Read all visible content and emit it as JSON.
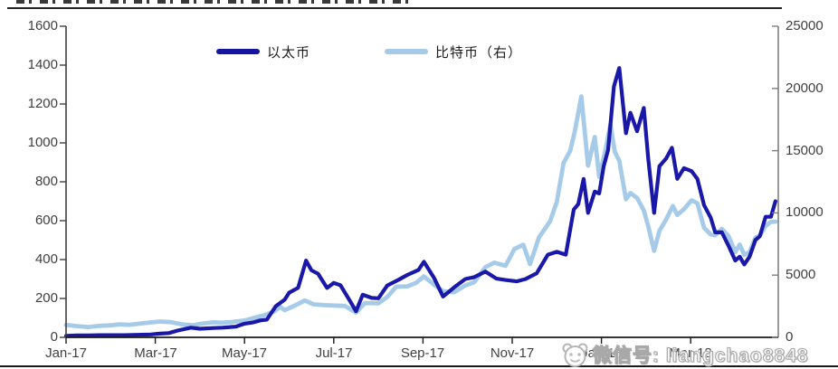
{
  "legend": {
    "items": [
      {
        "label": "以太币",
        "color": "#14149e"
      },
      {
        "label": "比特币（右）",
        "color": "#a6cbe9"
      }
    ]
  },
  "watermark": {
    "label": "微信号: liangchao8848",
    "icon": "panda-face-icon"
  },
  "chart_data": {
    "type": "line",
    "x_tick_labels": [
      "Jan-17",
      "Mar-17",
      "May-17",
      "Jul-17",
      "Sep-17",
      "Nov-17",
      "Jan-18",
      "Mar-18"
    ],
    "x_tick_months": [
      0,
      2,
      4,
      6,
      8,
      10,
      12,
      14
    ],
    "x_range_months": [
      0,
      15.9
    ],
    "left_axis": {
      "min": 0,
      "max": 1600,
      "step": 200,
      "ticks": [
        0,
        200,
        400,
        600,
        800,
        1000,
        1200,
        1400,
        1600
      ]
    },
    "right_axis": {
      "min": 0,
      "max": 25000,
      "step": 5000,
      "ticks": [
        0,
        5000,
        10000,
        15000,
        20000,
        25000
      ]
    },
    "grid": false,
    "legend_position": "top",
    "colors": {
      "axis_text": "#3f3f3f",
      "axis_line": "#404040",
      "right_axis_line": "#7f7f7f",
      "bottom_axis_line": "#1a1a1a"
    },
    "series": [
      {
        "name": "比特币（右）",
        "axis": "right",
        "color": "#a6cbe9",
        "points": [
          [
            0,
            997
          ],
          [
            0.25,
            900
          ],
          [
            0.5,
            830
          ],
          [
            0.75,
            920
          ],
          [
            1,
            970
          ],
          [
            1.2,
            1050
          ],
          [
            1.4,
            1000
          ],
          [
            1.6,
            1080
          ],
          [
            1.85,
            1180
          ],
          [
            2.1,
            1270
          ],
          [
            2.35,
            1220
          ],
          [
            2.6,
            1040
          ],
          [
            2.85,
            970
          ],
          [
            3,
            1080
          ],
          [
            3.3,
            1210
          ],
          [
            3.5,
            1180
          ],
          [
            3.7,
            1230
          ],
          [
            4,
            1350
          ],
          [
            4.2,
            1550
          ],
          [
            4.45,
            1790
          ],
          [
            4.65,
            2050
          ],
          [
            4.8,
            2450
          ],
          [
            4.9,
            2190
          ],
          [
            5.1,
            2510
          ],
          [
            5.35,
            2960
          ],
          [
            5.55,
            2650
          ],
          [
            5.8,
            2590
          ],
          [
            6,
            2560
          ],
          [
            6.25,
            2520
          ],
          [
            6.5,
            1990
          ],
          [
            6.7,
            2760
          ],
          [
            7,
            2730
          ],
          [
            7.2,
            3250
          ],
          [
            7.4,
            4070
          ],
          [
            7.65,
            4100
          ],
          [
            7.85,
            4390
          ],
          [
            8.02,
            4900
          ],
          [
            8.25,
            4230
          ],
          [
            8.45,
            3710
          ],
          [
            8.7,
            3630
          ],
          [
            8.95,
            4170
          ],
          [
            9.15,
            4430
          ],
          [
            9.4,
            5640
          ],
          [
            9.6,
            6000
          ],
          [
            9.85,
            5750
          ],
          [
            10.05,
            7100
          ],
          [
            10.25,
            7440
          ],
          [
            10.4,
            5880
          ],
          [
            10.6,
            8040
          ],
          [
            10.85,
            9330
          ],
          [
            11,
            10900
          ],
          [
            11.15,
            14000
          ],
          [
            11.3,
            15000
          ],
          [
            11.4,
            16500
          ],
          [
            11.55,
            19350
          ],
          [
            11.7,
            13800
          ],
          [
            11.85,
            16100
          ],
          [
            11.95,
            12900
          ],
          [
            12.1,
            15200
          ],
          [
            12.2,
            17100
          ],
          [
            12.3,
            14900
          ],
          [
            12.4,
            14200
          ],
          [
            12.55,
            11100
          ],
          [
            12.65,
            11600
          ],
          [
            12.8,
            11200
          ],
          [
            12.95,
            10200
          ],
          [
            13.05,
            8900
          ],
          [
            13.18,
            6950
          ],
          [
            13.3,
            8560
          ],
          [
            13.45,
            9480
          ],
          [
            13.6,
            10550
          ],
          [
            13.7,
            9840
          ],
          [
            13.85,
            10300
          ],
          [
            14.02,
            11020
          ],
          [
            14.15,
            10780
          ],
          [
            14.3,
            8800
          ],
          [
            14.45,
            8270
          ],
          [
            14.55,
            8200
          ],
          [
            14.7,
            8720
          ],
          [
            14.85,
            8140
          ],
          [
            15,
            6850
          ],
          [
            15.1,
            7460
          ],
          [
            15.2,
            6630
          ],
          [
            15.32,
            6840
          ],
          [
            15.45,
            8000
          ],
          [
            15.55,
            8170
          ],
          [
            15.68,
            8950
          ],
          [
            15.8,
            9280
          ],
          [
            15.9,
            9300
          ]
        ]
      },
      {
        "name": "以太币",
        "axis": "left",
        "color": "#1a18a8",
        "points": [
          [
            0,
            8
          ],
          [
            0.25,
            10
          ],
          [
            0.5,
            10
          ],
          [
            0.75,
            11
          ],
          [
            1,
            11
          ],
          [
            1.3,
            11
          ],
          [
            1.6,
            13
          ],
          [
            1.9,
            15
          ],
          [
            2.1,
            19
          ],
          [
            2.3,
            22
          ],
          [
            2.5,
            35
          ],
          [
            2.8,
            50
          ],
          [
            3,
            44
          ],
          [
            3.3,
            48
          ],
          [
            3.5,
            50
          ],
          [
            3.8,
            55
          ],
          [
            4,
            70
          ],
          [
            4.2,
            77
          ],
          [
            4.35,
            87
          ],
          [
            4.5,
            91
          ],
          [
            4.7,
            160
          ],
          [
            4.9,
            194
          ],
          [
            5,
            230
          ],
          [
            5.2,
            255
          ],
          [
            5.38,
            395
          ],
          [
            5.5,
            345
          ],
          [
            5.65,
            327
          ],
          [
            5.85,
            254
          ],
          [
            6,
            280
          ],
          [
            6.15,
            268
          ],
          [
            6.35,
            192
          ],
          [
            6.5,
            134
          ],
          [
            6.65,
            219
          ],
          [
            6.85,
            203
          ],
          [
            7,
            201
          ],
          [
            7.2,
            267
          ],
          [
            7.45,
            296
          ],
          [
            7.65,
            321
          ],
          [
            7.9,
            347
          ],
          [
            8.02,
            389
          ],
          [
            8.25,
            305
          ],
          [
            8.45,
            210
          ],
          [
            8.7,
            257
          ],
          [
            8.95,
            300
          ],
          [
            9.15,
            310
          ],
          [
            9.4,
            338
          ],
          [
            9.65,
            302
          ],
          [
            9.85,
            295
          ],
          [
            10.1,
            288
          ],
          [
            10.3,
            300
          ],
          [
            10.55,
            330
          ],
          [
            10.8,
            425
          ],
          [
            11,
            440
          ],
          [
            11.2,
            425
          ],
          [
            11.38,
            657
          ],
          [
            11.48,
            685
          ],
          [
            11.6,
            815
          ],
          [
            11.7,
            640
          ],
          [
            11.85,
            750
          ],
          [
            11.95,
            740
          ],
          [
            12.05,
            880
          ],
          [
            12.15,
            965
          ],
          [
            12.28,
            1290
          ],
          [
            12.4,
            1385
          ],
          [
            12.55,
            1050
          ],
          [
            12.65,
            1155
          ],
          [
            12.8,
            1060
          ],
          [
            12.95,
            1180
          ],
          [
            13.05,
            915
          ],
          [
            13.18,
            640
          ],
          [
            13.3,
            880
          ],
          [
            13.45,
            920
          ],
          [
            13.58,
            975
          ],
          [
            13.7,
            815
          ],
          [
            13.85,
            870
          ],
          [
            14.02,
            855
          ],
          [
            14.15,
            815
          ],
          [
            14.3,
            680
          ],
          [
            14.45,
            615
          ],
          [
            14.55,
            540
          ],
          [
            14.7,
            540
          ],
          [
            14.85,
            470
          ],
          [
            15,
            395
          ],
          [
            15.1,
            415
          ],
          [
            15.2,
            375
          ],
          [
            15.32,
            415
          ],
          [
            15.45,
            500
          ],
          [
            15.55,
            520
          ],
          [
            15.68,
            620
          ],
          [
            15.8,
            620
          ],
          [
            15.9,
            700
          ]
        ]
      }
    ]
  }
}
